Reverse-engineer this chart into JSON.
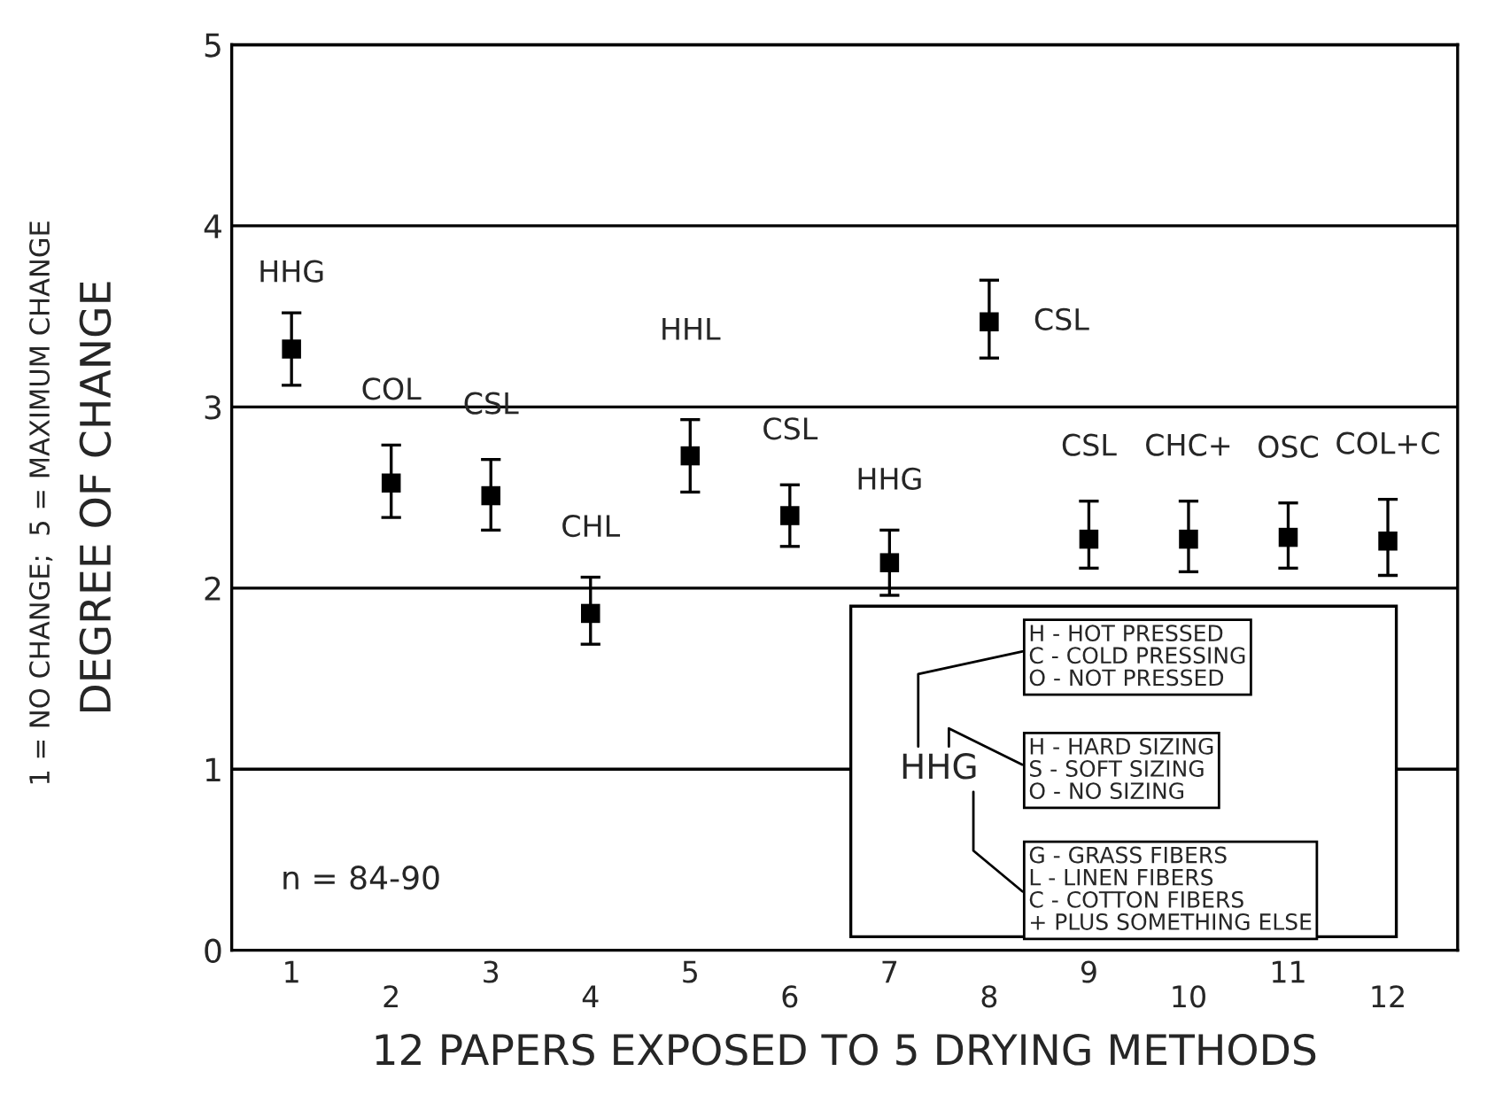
{
  "chart_data": {
    "type": "scatter",
    "xlabel": "12 PAPERS EXPOSED TO 5 DRYING METHODS",
    "ylabel": "DEGREE OF CHANGE",
    "categories": [
      "1",
      "2",
      "3",
      "4",
      "5",
      "6",
      "7",
      "8",
      "9",
      "10",
      "11",
      "12"
    ],
    "series": [
      {
        "color": "#000000",
        "values": [
          3.32,
          2.58,
          2.51,
          1.86,
          2.73,
          2.4,
          2.14,
          3.47,
          2.27,
          2.27,
          2.28,
          2.26
        ],
        "errors": [
          [
            3.12,
            3.52
          ],
          [
            2.39,
            2.79
          ],
          [
            2.32,
            2.71
          ],
          [
            1.69,
            2.06
          ],
          [
            2.53,
            2.93
          ],
          [
            2.23,
            2.57
          ],
          [
            1.96,
            2.32
          ],
          [
            3.27,
            3.7
          ],
          [
            2.11,
            2.48
          ],
          [
            2.09,
            2.48
          ],
          [
            2.11,
            2.47
          ],
          [
            2.07,
            2.49
          ]
        ]
      }
    ],
    "marker": "square",
    "ylim": [
      0,
      5
    ],
    "yticks": [
      0,
      1,
      2,
      3,
      4,
      5
    ],
    "grid": "y",
    "annotations": [
      "HHG",
      "COL",
      "CSL",
      "CHL",
      "HHL",
      "CSL",
      "HHG",
      "CSL",
      "CSL",
      "CHC+",
      "OSC",
      "COL+C",
      "n = 84-90",
      "1 = NO CHANGE;  5 = MAXIMUM CHANGE",
      "HHG",
      "H - HOT PRESSED\nC - COLD PRESSING\nO - NOT PRESSED",
      "H - HARD SIZING\nS - SOFT SIZING\nO - NO SIZING",
      "G - GRASS FIBERS\nL - LINEN FIBERS\nC - COTTON FIBERS\n+ PLUS SOMETHING ELSE"
    ]
  }
}
